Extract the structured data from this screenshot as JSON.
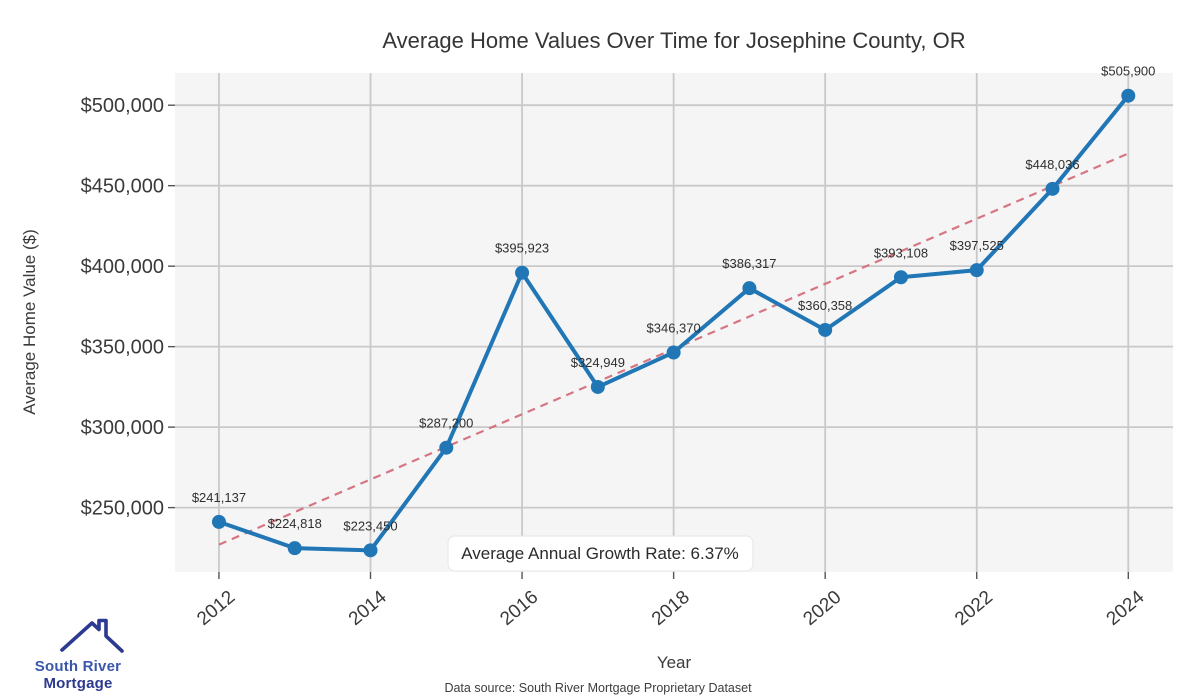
{
  "page": {
    "footer": "Data source: South River Mortgage Proprietary Dataset",
    "logo": {
      "line1": "South River",
      "line2": "Mortgage",
      "navy": "#2c3a8f",
      "blue": "#3a57ab"
    }
  },
  "chart_data": {
    "type": "line",
    "title": "Average Home Values Over Time for Josephine County, OR",
    "xlabel": "Year",
    "ylabel": "Average Home Value ($)",
    "x": [
      2012,
      2013,
      2014,
      2015,
      2016,
      2017,
      2018,
      2019,
      2020,
      2021,
      2022,
      2023,
      2024
    ],
    "values": [
      241137,
      224818,
      223450,
      287200,
      395923,
      324949,
      346370,
      386317,
      360358,
      393108,
      397525,
      448036,
      505900
    ],
    "point_labels": [
      "$241,137",
      "$224,818",
      "$223,450",
      "$287,200",
      "$395,923",
      "$324,949",
      "$346,370",
      "$386,317",
      "$360,358",
      "$393,108",
      "$397,525",
      "$448,036",
      "$505,900"
    ],
    "x_ticks": [
      2012,
      2014,
      2016,
      2018,
      2020,
      2022,
      2024
    ],
    "x_tick_labels": [
      "2012",
      "2014",
      "2016",
      "2018",
      "2020",
      "2022",
      "2024"
    ],
    "y_ticks": [
      250000,
      300000,
      350000,
      400000,
      450000,
      500000
    ],
    "y_tick_labels": [
      "$250,000",
      "$300,000",
      "$350,000",
      "$400,000",
      "$450,000",
      "$500,000"
    ],
    "xlim": [
      2011.42,
      2024.59
    ],
    "ylim": [
      210000,
      520000
    ],
    "grid": true,
    "legend": "none",
    "annotation": "Average Annual Growth Rate: 6.37%",
    "trend": {
      "style": "dashed",
      "start": {
        "x": 2012,
        "value": 227000
      },
      "end": {
        "x": 2024,
        "value": 470000
      }
    },
    "colors": {
      "line": "#2176b5",
      "marker": "#2176b5",
      "trend": "#d4707c",
      "plot_bg": "#f5f5f6",
      "grid": "#c9c9c9",
      "tick": "#555555",
      "annotation_bg": "#ffffff",
      "annotation_border": "#e6e6e6"
    }
  }
}
